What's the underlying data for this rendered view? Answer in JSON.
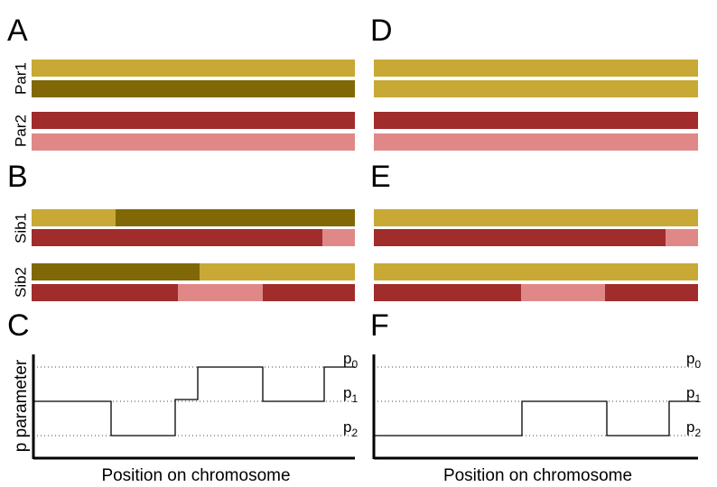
{
  "panel_letters": [
    "A",
    "B",
    "C",
    "D",
    "E",
    "F"
  ],
  "row_labels": [
    "Par1",
    "Par2",
    "Sib1",
    "Sib2"
  ],
  "plots": [
    {
      "y_label": "p parameter",
      "x_label": "Position on chromosome",
      "levels": [
        {
          "base": "p",
          "sub": "0"
        },
        {
          "base": "p",
          "sub": "1"
        },
        {
          "base": "p",
          "sub": "2"
        }
      ]
    },
    {
      "x_label": "Position on chromosome",
      "levels": [
        {
          "base": "p",
          "sub": "0"
        },
        {
          "base": "p",
          "sub": "1"
        },
        {
          "base": "p",
          "sub": "2"
        }
      ]
    }
  ]
}
